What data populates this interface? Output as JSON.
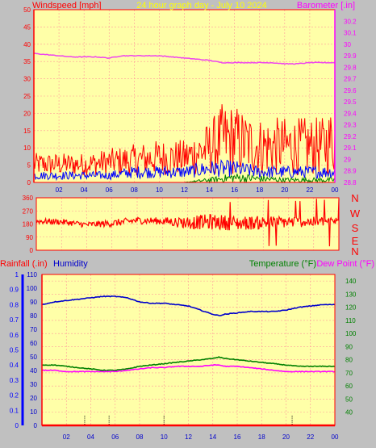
{
  "header": {
    "windspeed_label": "Windspeed [mph]",
    "title": "24 hour graph day - July 10 2024",
    "barometer_label": "Barometer [.in]"
  },
  "compass": [
    "N",
    "W",
    "S",
    "E",
    "N"
  ],
  "bottom_header": {
    "rainfall_label": "Rainfall (.in)",
    "humidity_label": "Humidity",
    "temperature_label": "Temperature (°F)",
    "dewpoint_label": "Dew Point (°F)"
  },
  "colors": {
    "plot_bg": "#ffffa8",
    "grid": "#ff9999",
    "wind_avg": "#ff0000",
    "gust": "#0000ff",
    "wind_low": "#008000",
    "barometer": "#ee44ee",
    "direction": "#ff0000",
    "humidity": "#0000cc",
    "temperature": "#008000",
    "dewpoint": "#ff00ff",
    "rain_axis": "#0000ff",
    "temp_axis": "#008000"
  },
  "chart_data": [
    {
      "type": "line",
      "title": "24 hour graph day - July 10 2024",
      "xticks": [
        "02",
        "04",
        "06",
        "08",
        "10",
        "12",
        "14",
        "16",
        "18",
        "20",
        "22",
        "00"
      ],
      "y_left": {
        "label": "Windspeed [mph]",
        "range": [
          0,
          50
        ],
        "ticks": [
          0,
          5,
          10,
          15,
          20,
          25,
          30,
          35,
          40,
          45,
          50
        ]
      },
      "y_right": {
        "label": "Barometer [.in]",
        "range": [
          28.8,
          30.3
        ],
        "ticks": [
          "28.8",
          "28.9",
          "29",
          "29.1",
          "29.2",
          "29.3",
          "29.4",
          "29.5",
          "29.6",
          "29.7",
          "29.8",
          "29.9",
          "30",
          "30.1",
          "30.2"
        ]
      },
      "series": [
        {
          "name": "Barometer",
          "axis": "right",
          "x": [
            0,
            1,
            2,
            3,
            4,
            5,
            6,
            7,
            8,
            9,
            10,
            11,
            12,
            13,
            14,
            15,
            16,
            17,
            18,
            19,
            20,
            21,
            22,
            23,
            24
          ],
          "values": [
            29.92,
            29.91,
            29.9,
            29.89,
            29.89,
            29.89,
            29.88,
            29.9,
            29.9,
            29.9,
            29.9,
            29.89,
            29.88,
            29.87,
            29.86,
            29.84,
            29.84,
            29.84,
            29.84,
            29.84,
            29.83,
            29.83,
            29.84,
            29.84,
            29.84
          ]
        },
        {
          "name": "Wind Gust",
          "axis": "left",
          "x": [
            0,
            2,
            4,
            6,
            8,
            10,
            12,
            13,
            14,
            15,
            16,
            17,
            18,
            19,
            20,
            21,
            22,
            23,
            24
          ],
          "values": [
            7,
            7,
            7,
            8,
            9,
            10,
            10,
            12,
            14,
            18,
            18,
            16,
            15,
            15,
            15,
            15,
            15,
            15,
            18
          ]
        },
        {
          "name": "Wind Average",
          "axis": "left",
          "x": [
            0,
            2,
            4,
            6,
            8,
            10,
            12,
            14,
            16,
            18,
            20,
            22,
            24
          ],
          "values": [
            2,
            2,
            2,
            2,
            3,
            3,
            3,
            4,
            4,
            3,
            3,
            3,
            3
          ]
        },
        {
          "name": "Wind Low",
          "axis": "left",
          "x": [
            0,
            4,
            8,
            12,
            14,
            16,
            20,
            24
          ],
          "values": [
            0,
            0,
            0,
            0,
            1,
            2,
            1,
            1
          ]
        }
      ]
    },
    {
      "type": "line",
      "xticks": [
        "02",
        "04",
        "06",
        "08",
        "10",
        "12",
        "14",
        "16",
        "18",
        "20",
        "22",
        "00"
      ],
      "y_left": {
        "range": [
          0,
          360
        ],
        "ticks": [
          0,
          90,
          180,
          270,
          360
        ]
      },
      "y_right_labels": [
        "N",
        "W",
        "S",
        "E",
        "N"
      ],
      "series": [
        {
          "name": "Wind Direction",
          "x": [
            0,
            2,
            4,
            6,
            8,
            10,
            12,
            14,
            16,
            18,
            20,
            22,
            24
          ],
          "values": [
            200,
            195,
            175,
            185,
            205,
            200,
            190,
            195,
            185,
            190,
            195,
            195,
            200
          ],
          "spread": [
            20,
            20,
            20,
            25,
            25,
            25,
            45,
            55,
            50,
            45,
            40,
            35,
            30
          ]
        }
      ]
    },
    {
      "type": "line",
      "xticks": [
        "02",
        "04",
        "06",
        "08",
        "10",
        "12",
        "14",
        "16",
        "18",
        "20",
        "22",
        "00"
      ],
      "y_left": {
        "label": "Rainfall (.in)",
        "range": [
          0,
          1
        ],
        "ticks": [
          "0",
          "0.1",
          "0.2",
          "0.3",
          "0.4",
          "0.5",
          "0.6",
          "0.7",
          "0.8",
          "0.9",
          "1"
        ]
      },
      "y_humidity": {
        "label": "Humidity",
        "range": [
          0,
          110
        ],
        "ticks": [
          0,
          10,
          20,
          30,
          40,
          50,
          60,
          70,
          80,
          90,
          100,
          110
        ]
      },
      "y_right": {
        "label": "Temperature (°F)",
        "range": [
          30,
          145
        ],
        "ticks": [
          40,
          50,
          60,
          70,
          80,
          90,
          100,
          110,
          120,
          130,
          140
        ]
      },
      "series": [
        {
          "name": "Humidity",
          "axis": "humidity",
          "x": [
            0,
            1,
            2,
            3,
            4,
            5,
            6,
            7,
            8,
            9,
            10,
            11,
            12,
            13,
            14,
            14.5,
            15,
            16,
            17,
            18,
            19,
            20,
            21,
            22,
            23,
            24
          ],
          "values": [
            88,
            90,
            91,
            92,
            93,
            94,
            94,
            93,
            90,
            89,
            89,
            88,
            87,
            84,
            81,
            80,
            81,
            82,
            83,
            83,
            83,
            84,
            86,
            87,
            88,
            88
          ]
        },
        {
          "name": "Temperature",
          "axis": "right",
          "x": [
            0,
            1,
            2,
            3,
            4,
            5,
            6,
            7,
            8,
            9,
            10,
            11,
            12,
            13,
            14,
            14.5,
            15,
            16,
            17,
            18,
            19,
            20,
            21,
            22,
            23,
            24
          ],
          "values": [
            76,
            76,
            75,
            74,
            73,
            72,
            72,
            73,
            75,
            76,
            77,
            78,
            79,
            80,
            81,
            82,
            81,
            80,
            79,
            78,
            77,
            76,
            75,
            75,
            75,
            75
          ]
        },
        {
          "name": "Dew Point",
          "axis": "right",
          "x": [
            0,
            1,
            2,
            3,
            4,
            5,
            6,
            7,
            8,
            9,
            10,
            11,
            12,
            13,
            14,
            14.5,
            15,
            16,
            17,
            18,
            19,
            20,
            21,
            22,
            23,
            24
          ],
          "values": [
            72,
            72,
            71,
            71,
            71,
            71,
            71,
            72,
            73,
            74,
            74,
            75,
            75,
            75,
            76,
            76,
            75,
            75,
            74,
            73,
            72,
            71,
            71,
            71,
            71,
            71
          ]
        },
        {
          "name": "Rainfall",
          "axis": "left",
          "x": [
            0,
            24
          ],
          "values": [
            0,
            0
          ],
          "marks_x": [
            3.5,
            5.5,
            10,
            20.5
          ]
        }
      ]
    }
  ]
}
